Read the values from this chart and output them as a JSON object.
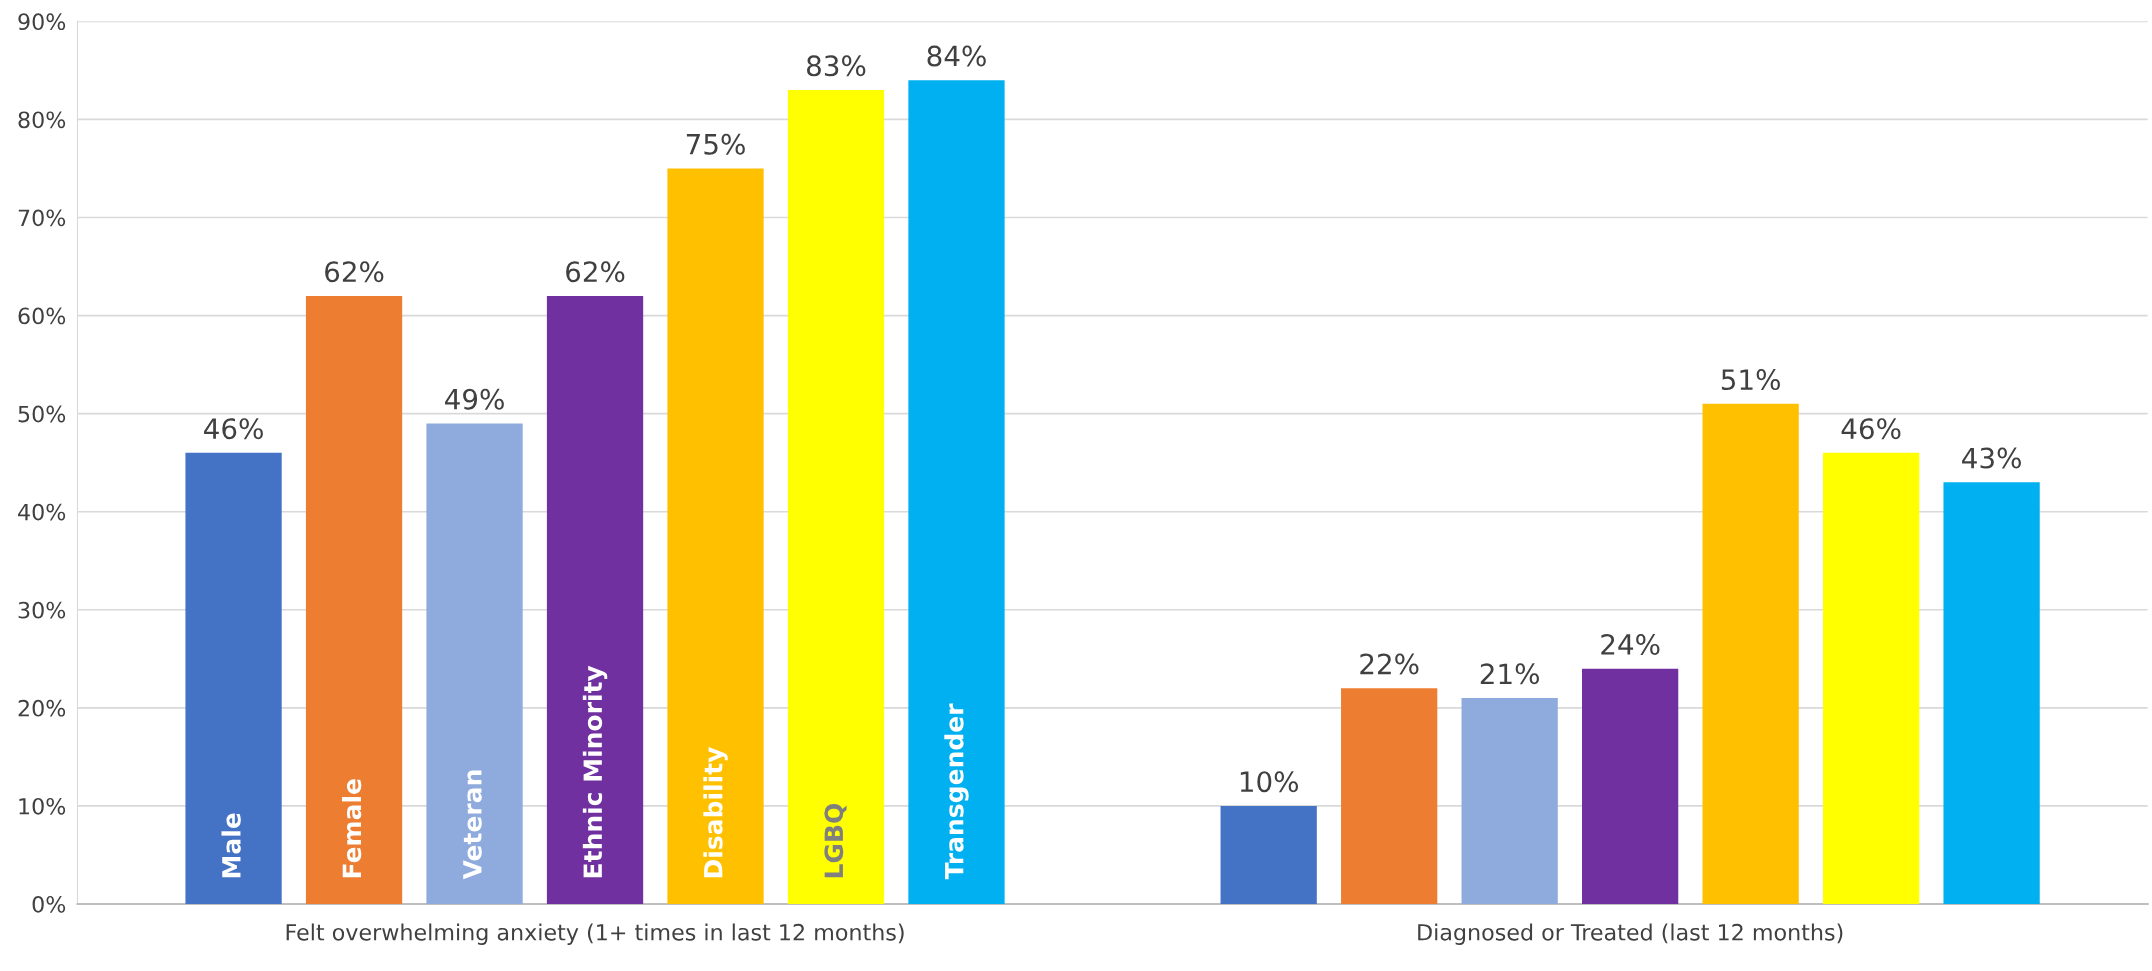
{
  "chart_data": {
    "type": "bar",
    "categories": [
      "Felt overwhelming anxiety (1+ times in last 12 months)",
      "Diagnosed or Treated (last 12 months)"
    ],
    "series": [
      {
        "name": "Male",
        "color": "#4472c4",
        "values": [
          46,
          10
        ],
        "value_labels": [
          "46%",
          "10%"
        ]
      },
      {
        "name": "Female",
        "color": "#ed7d31",
        "values": [
          62,
          22
        ],
        "value_labels": [
          "62%",
          "22%"
        ]
      },
      {
        "name": "Veteran",
        "color": "#8faadc",
        "values": [
          49,
          21
        ],
        "value_labels": [
          "49%",
          "21%"
        ]
      },
      {
        "name": "Ethnic Minority",
        "color": "#7030a0",
        "values": [
          62,
          24
        ],
        "value_labels": [
          "62%",
          "24%"
        ]
      },
      {
        "name": "Disability",
        "color": "#ffc000",
        "values": [
          75,
          51
        ],
        "value_labels": [
          "75%",
          "51%"
        ]
      },
      {
        "name": "LGBQ",
        "color": "#ffff00",
        "values": [
          83,
          46
        ],
        "value_labels": [
          "83%",
          "46%"
        ]
      },
      {
        "name": "Transgender",
        "color": "#00b0f0",
        "values": [
          84,
          43
        ],
        "value_labels": [
          "84%",
          "43%"
        ]
      }
    ],
    "ylim": [
      0,
      90
    ],
    "yticks": [
      {
        "value": 0,
        "label": "0%"
      },
      {
        "value": 10,
        "label": "10%"
      },
      {
        "value": 20,
        "label": "20%"
      },
      {
        "value": 30,
        "label": "30%"
      },
      {
        "value": 40,
        "label": "40%"
      },
      {
        "value": 50,
        "label": "50%"
      },
      {
        "value": 60,
        "label": "60%"
      },
      {
        "value": 70,
        "label": "70%"
      },
      {
        "value": 80,
        "label": "80%"
      },
      {
        "value": 90,
        "label": "90%"
      }
    ],
    "grid": "y",
    "legend": false
  }
}
